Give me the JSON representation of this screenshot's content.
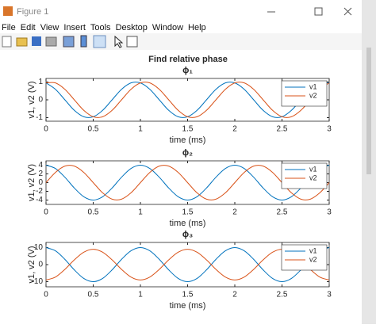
{
  "window": {
    "title": "Figure 1",
    "menu": [
      "File",
      "Edit",
      "View",
      "Insert",
      "Tools",
      "Desktop",
      "Window",
      "Help"
    ]
  },
  "figure": {
    "title": "Find relative phase"
  },
  "chart_data": [
    {
      "type": "line",
      "title": "ϕ₁",
      "xlabel": "time (ms)",
      "ylabel": "v1, v2 (V)",
      "legend": "northeast",
      "x": [
        0,
        0.1,
        0.2,
        0.3,
        0.4,
        0.5,
        0.6,
        0.7,
        0.8,
        0.9,
        1,
        1.1,
        1.2,
        1.3,
        1.4,
        1.5,
        1.6,
        1.7,
        1.8,
        1.9,
        2,
        2.1,
        2.2,
        2.3,
        2.4,
        2.5,
        2.6,
        2.7,
        2.8,
        2.9,
        3
      ],
      "xlim": [
        0,
        3
      ],
      "xticks": [
        0,
        0.5,
        1,
        1.5,
        2,
        2.5,
        3
      ],
      "ylim": [
        -1.2,
        1.2
      ],
      "yticks": [
        -1,
        0,
        1
      ],
      "series": [
        {
          "name": "v1",
          "color": "#0072BD",
          "values": [
            0.95,
            0.59,
            0,
            -0.59,
            -0.95,
            -0.95,
            -0.59,
            0,
            0.59,
            0.95,
            0.95,
            0.59,
            0,
            -0.59,
            -0.95,
            -0.95,
            -0.59,
            0,
            0.59,
            0.95,
            0.95,
            0.59,
            0,
            -0.59,
            -0.95,
            -0.95,
            -0.59,
            0,
            0.59,
            0.95,
            0.95
          ]
        },
        {
          "name": "v2",
          "color": "#D95319",
          "values": [
            0.95,
            0.95,
            0.59,
            0,
            -0.59,
            -0.95,
            -0.95,
            -0.59,
            0,
            0.59,
            0.95,
            0.95,
            0.59,
            0,
            -0.59,
            -0.95,
            -0.95,
            -0.59,
            0,
            0.59,
            0.95,
            0.95,
            0.59,
            0,
            -0.59,
            -0.95,
            -0.95,
            -0.59,
            0,
            0.59,
            0.95
          ]
        }
      ]
    },
    {
      "type": "line",
      "title": "ϕ₂",
      "xlabel": "time (ms)",
      "ylabel": "v1, v2 (V)",
      "legend": "northeast",
      "x": [
        0,
        0.1,
        0.2,
        0.3,
        0.4,
        0.5,
        0.6,
        0.7,
        0.8,
        0.9,
        1,
        1.1,
        1.2,
        1.3,
        1.4,
        1.5,
        1.6,
        1.7,
        1.8,
        1.9,
        2,
        2.1,
        2.2,
        2.3,
        2.4,
        2.5,
        2.6,
        2.7,
        2.8,
        2.9,
        3
      ],
      "xlim": [
        0,
        3
      ],
      "xticks": [
        0,
        0.5,
        1,
        1.5,
        2,
        2.5,
        3
      ],
      "ylim": [
        -5,
        5
      ],
      "yticks": [
        -4,
        -2,
        0,
        2,
        4
      ],
      "series": [
        {
          "name": "v1",
          "color": "#0072BD",
          "values": [
            4,
            3.24,
            1.24,
            -1.24,
            -3.24,
            -4,
            -3.24,
            -1.24,
            1.24,
            3.24,
            4,
            3.24,
            1.24,
            -1.24,
            -3.24,
            -4,
            -3.24,
            -1.24,
            1.24,
            3.24,
            4,
            3.24,
            1.24,
            -1.24,
            -3.24,
            -4,
            -3.24,
            -1.24,
            1.24,
            3.24,
            4
          ]
        },
        {
          "name": "v2",
          "color": "#D95319",
          "values": [
            0,
            2.35,
            3.8,
            3.8,
            2.35,
            0,
            -2.35,
            -3.8,
            -3.8,
            -2.35,
            0,
            2.35,
            3.8,
            3.8,
            2.35,
            0,
            -2.35,
            -3.8,
            -3.8,
            -2.35,
            0,
            2.35,
            3.8,
            3.8,
            2.35,
            0,
            -2.35,
            -3.8,
            -3.8,
            -2.35,
            0
          ]
        }
      ]
    },
    {
      "type": "line",
      "title": "ϕ₃",
      "xlabel": "time (ms)",
      "ylabel": "v1, v2 (V)",
      "legend": "northeast",
      "x": [
        0,
        0.1,
        0.2,
        0.3,
        0.4,
        0.5,
        0.6,
        0.7,
        0.8,
        0.9,
        1,
        1.1,
        1.2,
        1.3,
        1.4,
        1.5,
        1.6,
        1.7,
        1.8,
        1.9,
        2,
        2.1,
        2.2,
        2.3,
        2.4,
        2.5,
        2.6,
        2.7,
        2.8,
        2.9,
        3
      ],
      "xlim": [
        0,
        3
      ],
      "xticks": [
        0,
        0.5,
        1,
        1.5,
        2,
        2.5,
        3
      ],
      "ylim": [
        -13,
        13
      ],
      "yticks": [
        -10,
        0,
        10
      ],
      "series": [
        {
          "name": "v1",
          "color": "#0072BD",
          "values": [
            10,
            8.09,
            3.09,
            -3.09,
            -8.09,
            -10,
            -8.09,
            -3.09,
            3.09,
            8.09,
            10,
            8.09,
            3.09,
            -3.09,
            -8.09,
            -10,
            -8.09,
            -3.09,
            3.09,
            8.09,
            10,
            8.09,
            3.09,
            -3.09,
            -8.09,
            -10,
            -8.09,
            -3.09,
            3.09,
            8.09,
            10
          ]
        },
        {
          "name": "v2",
          "color": "#D95319",
          "values": [
            -9,
            -7.28,
            -2.78,
            2.78,
            7.28,
            9,
            7.28,
            2.78,
            -2.78,
            -7.28,
            -9,
            -7.28,
            -2.78,
            2.78,
            7.28,
            9,
            7.28,
            2.78,
            -2.78,
            -7.28,
            -9,
            -7.28,
            -2.78,
            2.78,
            7.28,
            9,
            7.28,
            2.78,
            -2.78,
            -7.28,
            -9
          ]
        }
      ]
    }
  ]
}
